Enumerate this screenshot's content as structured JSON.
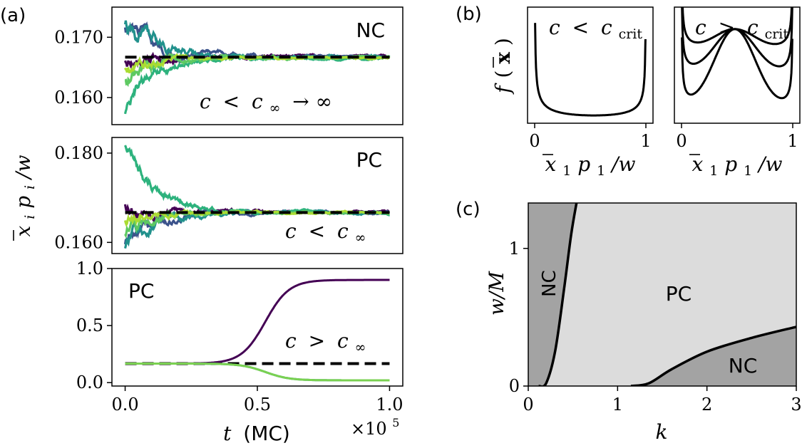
{
  "chart_data": [
    {
      "id": "a1",
      "panel_label": "(a)",
      "type": "line",
      "ylim": [
        0.1555,
        0.175
      ],
      "xlim": [
        -0.05,
        1.05
      ],
      "yticks": [
        0.16,
        0.17
      ],
      "ytick_labels": [
        "0.160",
        "0.170"
      ],
      "annotation": "NC",
      "condition": {
        "lhs": "c",
        "op": "<",
        "sym": "c",
        "sub": "∞",
        "tail": "→ ∞"
      },
      "reference": 0.1667,
      "series": [
        {
          "name": "trajectory-1",
          "color": "#440154",
          "start": 0.1665,
          "amp": 0.003,
          "end": 0.1668
        },
        {
          "name": "trajectory-2",
          "color": "#3b528b",
          "start": 0.172,
          "amp": 0.0035,
          "end": 0.1668
        },
        {
          "name": "trajectory-3",
          "color": "#21918c",
          "start": 0.1725,
          "amp": 0.004,
          "end": 0.1668
        },
        {
          "name": "trajectory-4",
          "color": "#2db27d",
          "start": 0.1575,
          "amp": 0.003,
          "end": 0.1665
        },
        {
          "name": "trajectory-5",
          "color": "#5ec962",
          "start": 0.163,
          "amp": 0.003,
          "end": 0.1666
        },
        {
          "name": "trajectory-6",
          "color": "#aadc32",
          "start": 0.165,
          "amp": 0.0025,
          "end": 0.1666
        }
      ]
    },
    {
      "id": "a2",
      "type": "line",
      "ylim": [
        0.1575,
        0.1835
      ],
      "xlim": [
        -0.05,
        1.05
      ],
      "yticks": [
        0.16,
        0.18
      ],
      "ytick_labels": [
        "0.160",
        "0.180"
      ],
      "annotation": "PC",
      "condition": {
        "lhs": "c",
        "op": "<",
        "sym": "c",
        "sub": "∞",
        "tail": ""
      },
      "ylabel": {
        "base": "x",
        "sub": "i",
        "mid": "p",
        "sub2": "i",
        "tail": "/w"
      },
      "reference": 0.1667,
      "series": [
        {
          "name": "trajectory-1",
          "color": "#440154",
          "start": 0.169,
          "amp": 0.004,
          "end": 0.1668
        },
        {
          "name": "trajectory-2",
          "color": "#3b528b",
          "start": 0.16,
          "amp": 0.004,
          "end": 0.1667
        },
        {
          "name": "trajectory-3",
          "color": "#21918c",
          "start": 0.159,
          "amp": 0.004,
          "end": 0.1667
        },
        {
          "name": "trajectory-4",
          "color": "#2db27d",
          "start": 0.182,
          "amp": 0.004,
          "end": 0.1667
        },
        {
          "name": "trajectory-5",
          "color": "#5ec962",
          "start": 0.162,
          "amp": 0.0035,
          "end": 0.1667
        },
        {
          "name": "trajectory-6",
          "color": "#aadc32",
          "start": 0.165,
          "amp": 0.003,
          "end": 0.1667
        }
      ]
    },
    {
      "id": "a3",
      "type": "line",
      "ylim": [
        -0.03,
        1.0
      ],
      "xlim": [
        -0.05,
        1.05
      ],
      "yticks": [
        0.0,
        0.5,
        1.0
      ],
      "ytick_labels": [
        "0.0",
        "0.5",
        "1.0"
      ],
      "xticks": [
        0.0,
        0.5,
        1.0
      ],
      "xtick_labels": [
        "0.0",
        "0.5",
        "1.0"
      ],
      "annotation": "PC",
      "condition": {
        "lhs": "c",
        "op": ">",
        "sym": "c",
        "sub": "∞",
        "tail": ""
      },
      "xlabel": {
        "var": "t",
        "unit": "(MC)"
      },
      "xscale": {
        "base": "×10",
        "exp": "5"
      },
      "reference": 0.1667,
      "series": [
        {
          "name": "winner",
          "color": "#440154",
          "from": 0.1667,
          "to": 0.9,
          "mid": 0.53,
          "width": 0.045
        },
        {
          "name": "loser-teal",
          "color": "#21918c",
          "from": 0.1667,
          "to": 0.02,
          "mid": 0.53,
          "width": 0.045
        },
        {
          "name": "loser-green",
          "color": "#7ad151",
          "from": 0.1667,
          "to": 0.02,
          "mid": 0.53,
          "width": 0.045
        }
      ]
    },
    {
      "id": "b1",
      "panel_label": "(b)",
      "type": "line",
      "xticks": [
        0,
        1
      ],
      "xtick_labels": [
        "0",
        "1"
      ],
      "condition": {
        "lhs": "c",
        "op": "<",
        "sym": "c",
        "sub": "crit"
      },
      "ylabel": {
        "base": "f",
        "arg": "x"
      },
      "xlabel": {
        "base": "x",
        "sub": "1",
        "mid": "p",
        "sub2": "1",
        "tail": "/w"
      },
      "series": [
        {
          "name": "distribution",
          "shape": "u-shaped"
        }
      ]
    },
    {
      "id": "b2",
      "type": "line",
      "xticks": [
        0,
        1
      ],
      "xtick_labels": [
        "0",
        "1"
      ],
      "condition": {
        "lhs": "c",
        "op": ">",
        "sym": "c",
        "sub": "crit"
      },
      "xlabel": {
        "base": "x",
        "sub": "1",
        "mid": "p",
        "sub2": "1",
        "tail": "/w"
      },
      "series": [
        {
          "name": "distribution-1",
          "depth": 0.35
        },
        {
          "name": "distribution-2",
          "depth": 0.75
        },
        {
          "name": "distribution-3",
          "depth": 1.3
        }
      ]
    },
    {
      "id": "c",
      "panel_label": "(c)",
      "type": "area",
      "xlim": [
        0,
        3
      ],
      "ylim": [
        0,
        1.33
      ],
      "xticks": [
        0,
        1,
        2,
        3
      ],
      "xtick_labels": [
        "0",
        "1",
        "2",
        "3"
      ],
      "yticks": [
        0,
        1
      ],
      "ytick_labels": [
        "0",
        "1"
      ],
      "xlabel": "k",
      "ylabel": "w/M",
      "regions": [
        {
          "name": "NC",
          "label": "NC",
          "color": "#a3a3a3"
        },
        {
          "name": "PC",
          "label": "PC",
          "color": "#dcdcdc"
        },
        {
          "name": "NC",
          "label": "NC",
          "color": "#a3a3a3"
        }
      ],
      "boundaries": [
        {
          "name": "left-boundary",
          "points": [
            [
              0.12,
              0
            ],
            [
              0.2,
              0.02
            ],
            [
              0.3,
              0.25
            ],
            [
              0.4,
              0.7
            ],
            [
              0.48,
              1.1
            ],
            [
              0.54,
              1.33
            ]
          ]
        },
        {
          "name": "right-boundary",
          "points": [
            [
              1.15,
              0
            ],
            [
              1.35,
              0.02
            ],
            [
              1.6,
              0.12
            ],
            [
              2.0,
              0.25
            ],
            [
              2.5,
              0.35
            ],
            [
              3.0,
              0.43
            ]
          ]
        }
      ]
    }
  ]
}
